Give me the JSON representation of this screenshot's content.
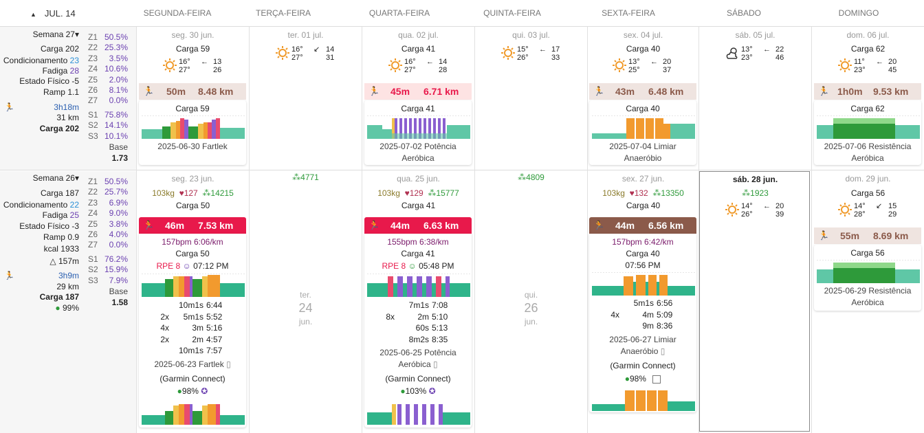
{
  "header": {
    "month": "JUL. 14",
    "days": [
      "SEGUNDA-FEIRA",
      "TERÇA-FEIRA",
      "QUARTA-FEIRA",
      "QUINTA-FEIRA",
      "SEXTA-FEIRA",
      "SÁBADO",
      "DOMINGO"
    ]
  },
  "week1": {
    "title": "Semana 27",
    "carga": "Carga 202",
    "cond_label": "Condicionamento",
    "cond_val": "23",
    "fadiga_label": "Fadiga",
    "fadiga_val": "28",
    "estado": "Estado Físico -5",
    "ramp": "Ramp 1.1",
    "time": "3h18m",
    "dist": "31 km",
    "carga2": "Carga 202",
    "zones": [
      [
        "Z1",
        "50.5%"
      ],
      [
        "Z2",
        "25.3%"
      ],
      [
        "Z3",
        "3.5%"
      ],
      [
        "Z4",
        "10.6%"
      ],
      [
        "Z5",
        "2.0%"
      ],
      [
        "Z6",
        "8.1%"
      ],
      [
        "Z7",
        "0.0%"
      ]
    ],
    "sz": [
      [
        "S1",
        "75.8%"
      ],
      [
        "S2",
        "14.1%"
      ],
      [
        "S3",
        "10.1%"
      ]
    ],
    "base_label": "Base",
    "base_val": "1.73",
    "mon": {
      "date": "seg. 30 jun.",
      "carga": "Carga 59",
      "t1": "16°",
      "t2": "27°",
      "w1": "13",
      "w2": "26",
      "dur": "50m",
      "dist": "8.48 km",
      "card_carga": "Carga 59",
      "name": "2025-06-30 Fartlek"
    },
    "tue": {
      "date": "ter. 01 jul.",
      "t1": "16°",
      "t2": "27°",
      "w1": "14",
      "w2": "31"
    },
    "wed": {
      "date": "qua. 02 jul.",
      "carga": "Carga 41",
      "t1": "16°",
      "t2": "27°",
      "w1": "14",
      "w2": "28",
      "dur": "45m",
      "dist": "6.71 km",
      "card_carga": "Carga 41",
      "name1": "2025-07-02 Potência",
      "name2": "Aeróbica"
    },
    "thu": {
      "date": "qui. 03 jul.",
      "t1": "15°",
      "t2": "26°",
      "w1": "17",
      "w2": "33"
    },
    "fri": {
      "date": "sex. 04 jul.",
      "carga": "Carga 40",
      "t1": "13°",
      "t2": "25°",
      "w1": "20",
      "w2": "37",
      "dur": "43m",
      "dist": "6.48 km",
      "card_carga": "Carga 40",
      "name1": "2025-07-04 Limiar",
      "name2": "Anaeróbio"
    },
    "sat": {
      "date": "sáb. 05 jul.",
      "t1": "13°",
      "t2": "23°",
      "w1": "22",
      "w2": "46"
    },
    "sun": {
      "date": "dom. 06 jul.",
      "carga": "Carga 62",
      "t1": "11°",
      "t2": "23°",
      "w1": "20",
      "w2": "45",
      "dur": "1h0m",
      "dist": "9.53 km",
      "card_carga": "Carga 62",
      "name1": "2025-07-06 Resistência",
      "name2": "Aeróbica"
    }
  },
  "week2": {
    "title": "Semana 26",
    "carga": "Carga 187",
    "cond_label": "Condicionamento",
    "cond_val": "22",
    "fadiga_label": "Fadiga",
    "fadiga_val": "25",
    "estado": "Estado Físico -3",
    "ramp": "Ramp 0.9",
    "kcal": "kcal 1933",
    "elev": "△ 157m",
    "time": "3h9m",
    "dist": "29 km",
    "carga2": "Carga 187",
    "pct": "99%",
    "zones": [
      [
        "Z1",
        "50.5%"
      ],
      [
        "Z2",
        "25.7%"
      ],
      [
        "Z3",
        "6.9%"
      ],
      [
        "Z4",
        "9.0%"
      ],
      [
        "Z5",
        "3.8%"
      ],
      [
        "Z6",
        "4.0%"
      ],
      [
        "Z7",
        "0.0%"
      ]
    ],
    "sz": [
      [
        "S1",
        "76.2%"
      ],
      [
        "S2",
        "15.9%"
      ],
      [
        "S3",
        "7.9%"
      ]
    ],
    "base_label": "Base",
    "base_val": "1.58",
    "mon": {
      "date": "seg. 23 jun.",
      "kg": "103kg",
      "hr": "127",
      "steps": "14215",
      "carga": "Carga 50",
      "dur": "46m",
      "dist": "7.53 km",
      "pace": "157bpm 6:06/km",
      "card_carga": "Carga 50",
      "rpe": "RPE 8",
      "time": "07:12 PM",
      "intervals": [
        [
          "",
          "10m1s",
          "6:44"
        ],
        [
          "2x",
          "5m1s",
          "5:52"
        ],
        [
          "4x",
          "3m",
          "5:16"
        ],
        [
          "2x",
          "2m",
          "4:57"
        ],
        [
          "",
          "10m1s",
          "7:57"
        ]
      ],
      "name": "2025-06-23 Fartlek",
      "source": "(Garmin Connect)",
      "pct": "98%"
    },
    "tue": {
      "steps": "4771",
      "date_a": "ter.",
      "date_b": "24",
      "date_c": "jun."
    },
    "wed": {
      "date": "qua. 25 jun.",
      "kg": "103kg",
      "hr": "129",
      "steps": "15777",
      "carga": "Carga 41",
      "dur": "44m",
      "dist": "6.63 km",
      "pace": "155bpm 6:38/km",
      "card_carga": "Carga 41",
      "rpe": "RPE 8",
      "time": "05:48 PM",
      "intervals": [
        [
          "",
          "7m1s",
          "7:08"
        ],
        [
          "8x",
          "2m",
          "5:10"
        ],
        [
          "",
          "60s",
          "5:13"
        ],
        [
          "",
          "8m2s",
          "8:35"
        ]
      ],
      "name1": "2025-06-25 Potência",
      "name2": "Aeróbica",
      "source": "(Garmin Connect)",
      "pct": "103%"
    },
    "thu": {
      "steps": "4809",
      "date_a": "qui.",
      "date_b": "26",
      "date_c": "jun."
    },
    "fri": {
      "date": "sex. 27 jun.",
      "kg": "103kg",
      "hr": "132",
      "steps": "13350",
      "carga": "Carga 40",
      "dur": "44m",
      "dist": "6.56 km",
      "pace": "157bpm 6:42/km",
      "card_carga": "Carga 40",
      "time": "07:56 PM",
      "intervals": [
        [
          "",
          "5m1s",
          "6:56"
        ],
        [
          "4x",
          "4m",
          "5:09"
        ],
        [
          "",
          "9m",
          "8:36"
        ]
      ],
      "name1": "2025-06-27 Limiar",
      "name2": "Anaeróbio",
      "source": "(Garmin Connect)",
      "pct": "98%"
    },
    "sat": {
      "date": "sáb. 28 jun.",
      "steps": "1923",
      "t1": "14°",
      "t2": "26°",
      "w1": "20",
      "w2": "39"
    },
    "sun": {
      "date": "dom. 29 jun.",
      "carga": "Carga 56",
      "t1": "14°",
      "t2": "28°",
      "w1": "15",
      "w2": "29",
      "dur": "55m",
      "dist": "8.69 km",
      "card_carga": "Carga 56",
      "name1": "2025-06-29 Resistência",
      "name2": "Aeróbica"
    }
  },
  "colors": {
    "zone": "#6a3fb0",
    "cond": "#2a8fd6",
    "fadiga": "#6a3fb0",
    "act_light_red": "#fde3e3",
    "act_light_brown": "#efe4e0",
    "act_red": "#e8194b",
    "act_brown": "#8b5a4a"
  }
}
